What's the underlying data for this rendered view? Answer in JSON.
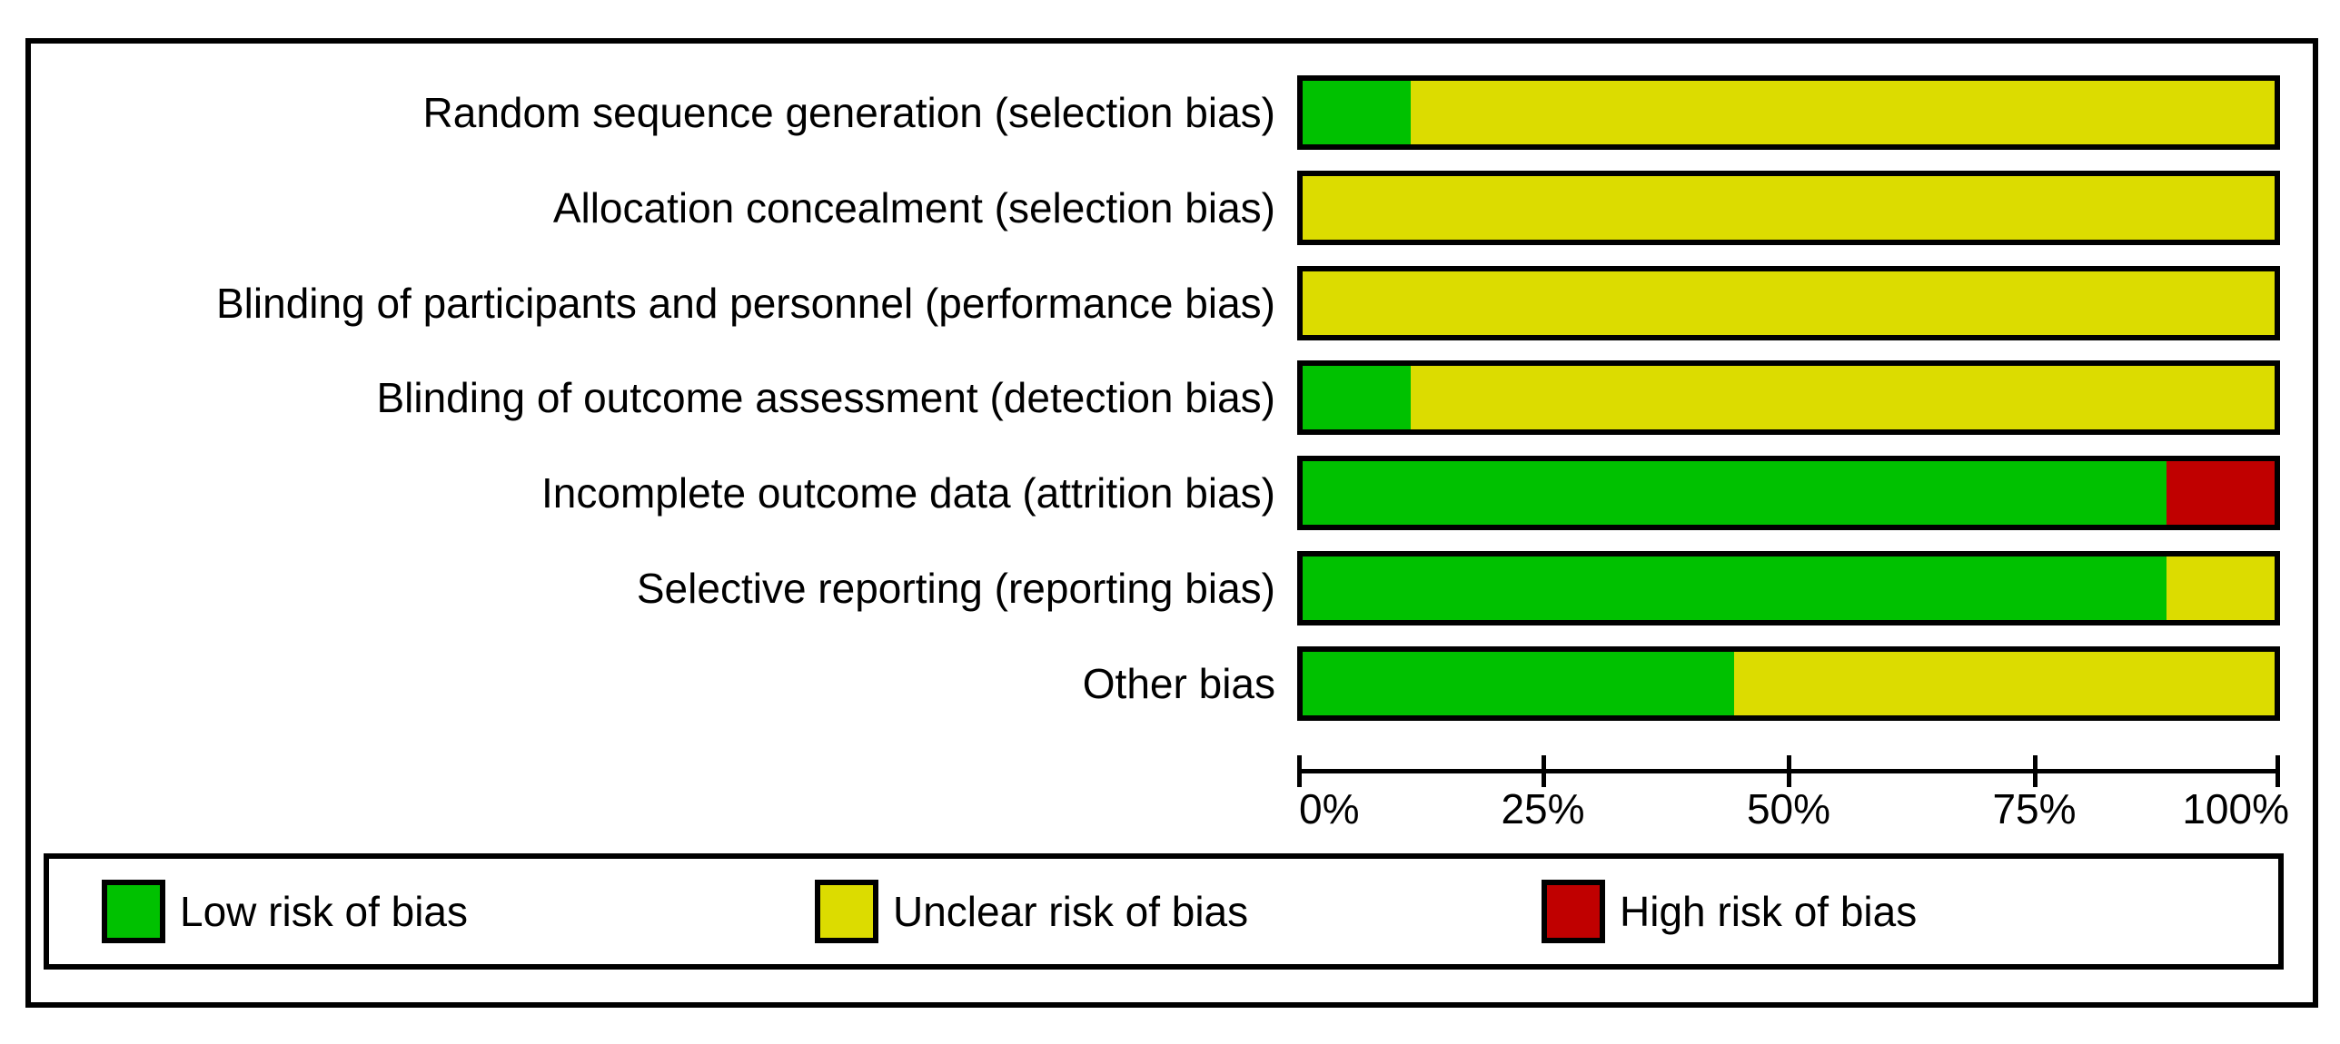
{
  "chart_data": {
    "type": "bar",
    "stacked": true,
    "orientation": "horizontal",
    "categories": [
      "Random sequence generation (selection bias)",
      "Allocation concealment (selection bias)",
      "Blinding of participants and personnel (performance bias)",
      "Blinding of outcome assessment (detection bias)",
      "Incomplete outcome data (attrition bias)",
      "Selective reporting (reporting bias)",
      "Other bias"
    ],
    "series": [
      {
        "name": "Low risk of bias",
        "color": "#00c100",
        "values": [
          11.1,
          0,
          0,
          11.1,
          88.9,
          88.9,
          44.4
        ]
      },
      {
        "name": "Unclear risk of bias",
        "color": "#dcdc00",
        "values": [
          88.9,
          100,
          100,
          88.9,
          0,
          11.1,
          55.6
        ]
      },
      {
        "name": "High risk of bias",
        "color": "#c00000",
        "values": [
          0,
          0,
          0,
          0,
          11.1,
          0,
          0
        ]
      }
    ],
    "x_ticks": [
      "0%",
      "25%",
      "50%",
      "75%",
      "100%"
    ],
    "xlim": [
      0,
      100
    ],
    "grid": false,
    "legend_position": "bottom"
  },
  "legend": {
    "items": [
      {
        "label": "Low risk of bias",
        "color": "#00c100"
      },
      {
        "label": "Unclear risk of bias",
        "color": "#dcdc00"
      },
      {
        "label": "High risk of bias",
        "color": "#c00000"
      }
    ]
  }
}
